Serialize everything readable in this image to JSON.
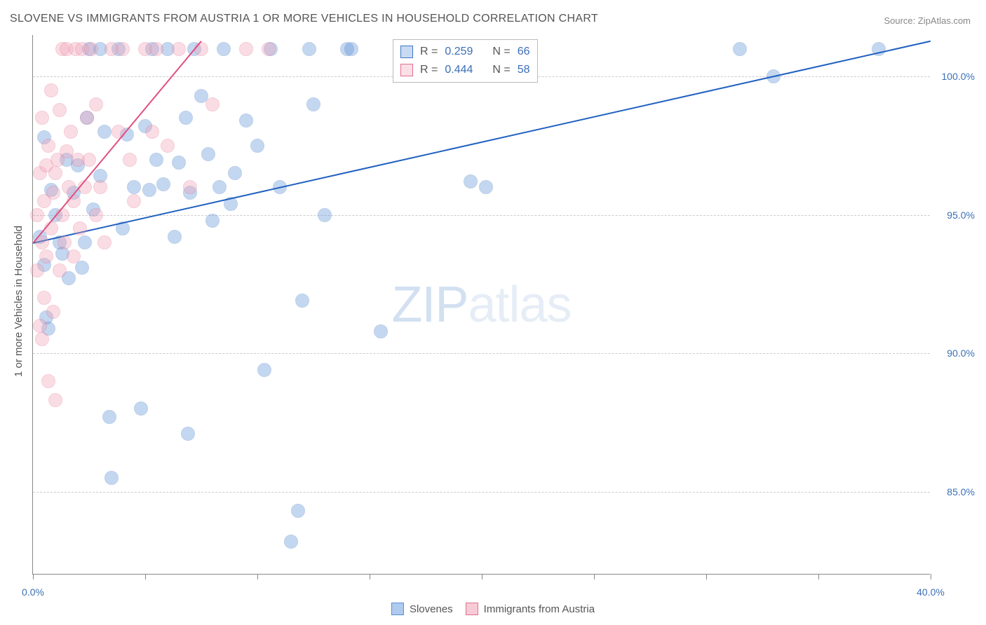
{
  "title": "SLOVENE VS IMMIGRANTS FROM AUSTRIA 1 OR MORE VEHICLES IN HOUSEHOLD CORRELATION CHART",
  "source": "Source: ZipAtlas.com",
  "watermark": {
    "bold": "ZIP",
    "light": "atlas"
  },
  "y_axis_label": "1 or more Vehicles in Household",
  "chart": {
    "type": "scatter",
    "background_color": "#ffffff",
    "grid_color": "#cccccc",
    "axis_color": "#888888",
    "xlim": [
      0,
      40
    ],
    "ylim": [
      82,
      101.5
    ],
    "x_ticks": [
      0,
      5,
      10,
      15,
      20,
      25,
      30,
      35,
      40
    ],
    "x_tick_labels": {
      "0": "0.0%",
      "40": "40.0%"
    },
    "y_ticks": [
      85,
      90,
      95,
      100
    ],
    "y_tick_labels": {
      "85": "85.0%",
      "90": "90.0%",
      "95": "95.0%",
      "100": "100.0%"
    },
    "marker_radius": 10,
    "marker_fill_opacity": 0.35,
    "series": [
      {
        "name": "Slovenes",
        "color": "#5a8fd6",
        "stroke": "#3f78c2",
        "R_label": "R =",
        "R": "0.259",
        "N_label": "N =",
        "N": "66",
        "trend": {
          "x1": 0,
          "y1": 94.0,
          "x2": 40,
          "y2": 101.3,
          "color": "#2060c0",
          "width": 2
        },
        "points": [
          [
            0.3,
            94.2
          ],
          [
            0.5,
            93.2
          ],
          [
            0.5,
            97.8
          ],
          [
            0.6,
            91.3
          ],
          [
            0.7,
            90.9
          ],
          [
            0.8,
            95.9
          ],
          [
            1.0,
            95.0
          ],
          [
            1.2,
            94.0
          ],
          [
            1.3,
            93.6
          ],
          [
            1.5,
            97.0
          ],
          [
            1.6,
            92.7
          ],
          [
            1.8,
            95.8
          ],
          [
            2.0,
            96.8
          ],
          [
            2.2,
            93.1
          ],
          [
            2.3,
            94.0
          ],
          [
            2.4,
            98.5
          ],
          [
            2.5,
            101.0
          ],
          [
            2.7,
            95.2
          ],
          [
            3.0,
            96.4
          ],
          [
            3.0,
            101.0
          ],
          [
            3.2,
            98.0
          ],
          [
            3.4,
            87.7
          ],
          [
            3.5,
            85.5
          ],
          [
            3.8,
            101.0
          ],
          [
            4.0,
            94.5
          ],
          [
            4.2,
            97.9
          ],
          [
            4.5,
            96.0
          ],
          [
            4.8,
            88.0
          ],
          [
            5.0,
            98.2
          ],
          [
            5.2,
            95.9
          ],
          [
            5.3,
            101.0
          ],
          [
            5.5,
            97.0
          ],
          [
            5.8,
            96.1
          ],
          [
            6.0,
            101.0
          ],
          [
            6.3,
            94.2
          ],
          [
            6.5,
            96.9
          ],
          [
            6.8,
            98.5
          ],
          [
            6.9,
            87.1
          ],
          [
            7.0,
            95.8
          ],
          [
            7.2,
            101.0
          ],
          [
            7.5,
            99.3
          ],
          [
            7.8,
            97.2
          ],
          [
            8.0,
            94.8
          ],
          [
            8.3,
            96.0
          ],
          [
            8.5,
            101.0
          ],
          [
            8.8,
            95.4
          ],
          [
            9.0,
            96.5
          ],
          [
            9.5,
            98.4
          ],
          [
            10.0,
            97.5
          ],
          [
            10.3,
            89.4
          ],
          [
            10.6,
            101.0
          ],
          [
            11.0,
            96.0
          ],
          [
            11.5,
            83.2
          ],
          [
            11.8,
            84.3
          ],
          [
            12.0,
            91.9
          ],
          [
            12.3,
            101.0
          ],
          [
            12.5,
            99.0
          ],
          [
            13.0,
            95.0
          ],
          [
            14.0,
            101.0
          ],
          [
            14.2,
            101.0
          ],
          [
            15.5,
            90.8
          ],
          [
            19.5,
            96.2
          ],
          [
            20.2,
            96.0
          ],
          [
            31.5,
            101.0
          ],
          [
            33.0,
            100.0
          ],
          [
            37.7,
            101.0
          ]
        ]
      },
      {
        "name": "Immigrants from Austria",
        "color": "#f2a0b4",
        "stroke": "#e1708f",
        "R_label": "R =",
        "R": "0.444",
        "N_label": "N =",
        "N": "58",
        "trend": {
          "x1": 0,
          "y1": 94.0,
          "x2": 7.5,
          "y2": 101.3,
          "color": "#e05080",
          "width": 2
        },
        "points": [
          [
            0.2,
            95.0
          ],
          [
            0.2,
            93.0
          ],
          [
            0.3,
            91.0
          ],
          [
            0.3,
            96.5
          ],
          [
            0.4,
            90.5
          ],
          [
            0.4,
            98.5
          ],
          [
            0.4,
            94.0
          ],
          [
            0.5,
            92.0
          ],
          [
            0.5,
            95.5
          ],
          [
            0.6,
            93.5
          ],
          [
            0.6,
            96.8
          ],
          [
            0.7,
            89.0
          ],
          [
            0.7,
            97.5
          ],
          [
            0.8,
            94.5
          ],
          [
            0.8,
            99.5
          ],
          [
            0.9,
            91.5
          ],
          [
            0.9,
            95.8
          ],
          [
            1.0,
            88.3
          ],
          [
            1.0,
            96.5
          ],
          [
            1.1,
            97.0
          ],
          [
            1.2,
            93.0
          ],
          [
            1.2,
            98.8
          ],
          [
            1.3,
            95.0
          ],
          [
            1.3,
            101.0
          ],
          [
            1.4,
            94.0
          ],
          [
            1.5,
            97.3
          ],
          [
            1.5,
            101.0
          ],
          [
            1.6,
            96.0
          ],
          [
            1.7,
            98.0
          ],
          [
            1.8,
            95.5
          ],
          [
            1.8,
            93.5
          ],
          [
            1.9,
            101.0
          ],
          [
            2.0,
            97.0
          ],
          [
            2.1,
            94.5
          ],
          [
            2.2,
            101.0
          ],
          [
            2.3,
            96.0
          ],
          [
            2.4,
            98.5
          ],
          [
            2.5,
            97.0
          ],
          [
            2.6,
            101.0
          ],
          [
            2.8,
            95.0
          ],
          [
            2.8,
            99.0
          ],
          [
            3.0,
            96.0
          ],
          [
            3.2,
            94.0
          ],
          [
            3.5,
            101.0
          ],
          [
            3.8,
            98.0
          ],
          [
            4.0,
            101.0
          ],
          [
            4.3,
            97.0
          ],
          [
            4.5,
            95.5
          ],
          [
            5.0,
            101.0
          ],
          [
            5.3,
            98.0
          ],
          [
            5.5,
            101.0
          ],
          [
            6.0,
            97.5
          ],
          [
            6.5,
            101.0
          ],
          [
            7.0,
            96.0
          ],
          [
            7.5,
            101.0
          ],
          [
            8.0,
            99.0
          ],
          [
            9.5,
            101.0
          ],
          [
            10.5,
            101.0
          ]
        ]
      }
    ]
  },
  "legend_bottom": {
    "items": [
      {
        "label": "Slovenes",
        "fill": "#aecaee",
        "stroke": "#5a8fd6"
      },
      {
        "label": "Immigrants from Austria",
        "fill": "#f7cbd6",
        "stroke": "#e1708f"
      }
    ]
  }
}
